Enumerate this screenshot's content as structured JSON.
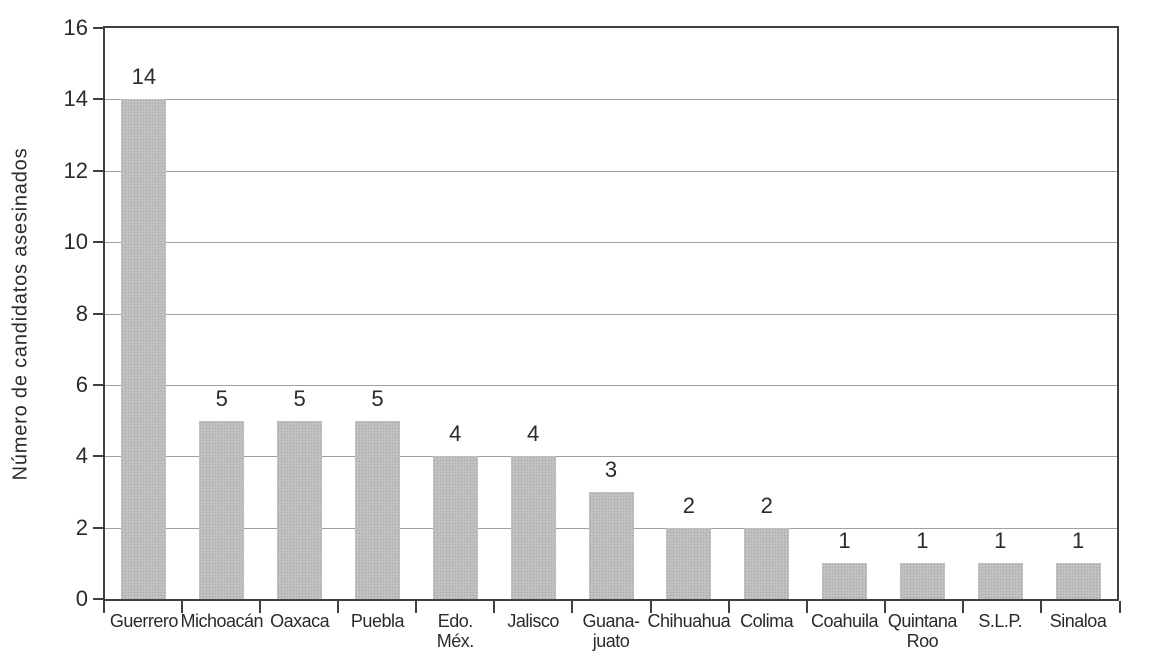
{
  "chart_data": {
    "type": "bar",
    "title": "",
    "ylabel": "Número de candidatos asesinados",
    "xlabel": "",
    "ylim": [
      0,
      16
    ],
    "yticks": [
      0,
      2,
      4,
      6,
      8,
      10,
      12,
      14,
      16
    ],
    "grid": "horizontal gridlines at each y tick, full dark rectangular plot border",
    "legend": "none",
    "categories": [
      "Guerrero",
      "Michoacán",
      "Oaxaca",
      "Puebla",
      "Edo.\nMéx.",
      "Jalisco",
      "Guana-\njuato",
      "Chihuahua",
      "Colima",
      "Coahuila",
      "Quintana\nRoo",
      "S.L.P.",
      "Sinaloa"
    ],
    "values": [
      14,
      5,
      5,
      5,
      4,
      4,
      3,
      2,
      2,
      1,
      1,
      1,
      1
    ],
    "value_labels": [
      "14",
      "5",
      "5",
      "5",
      "4",
      "4",
      "3",
      "2",
      "2",
      "1",
      "1",
      "1",
      "1"
    ],
    "colors": {
      "bar": "#bec0c2",
      "gridline": "#a0a0a2",
      "axis": "#3f3f43",
      "text": "#2a2a30",
      "background": "#ffffff"
    }
  }
}
